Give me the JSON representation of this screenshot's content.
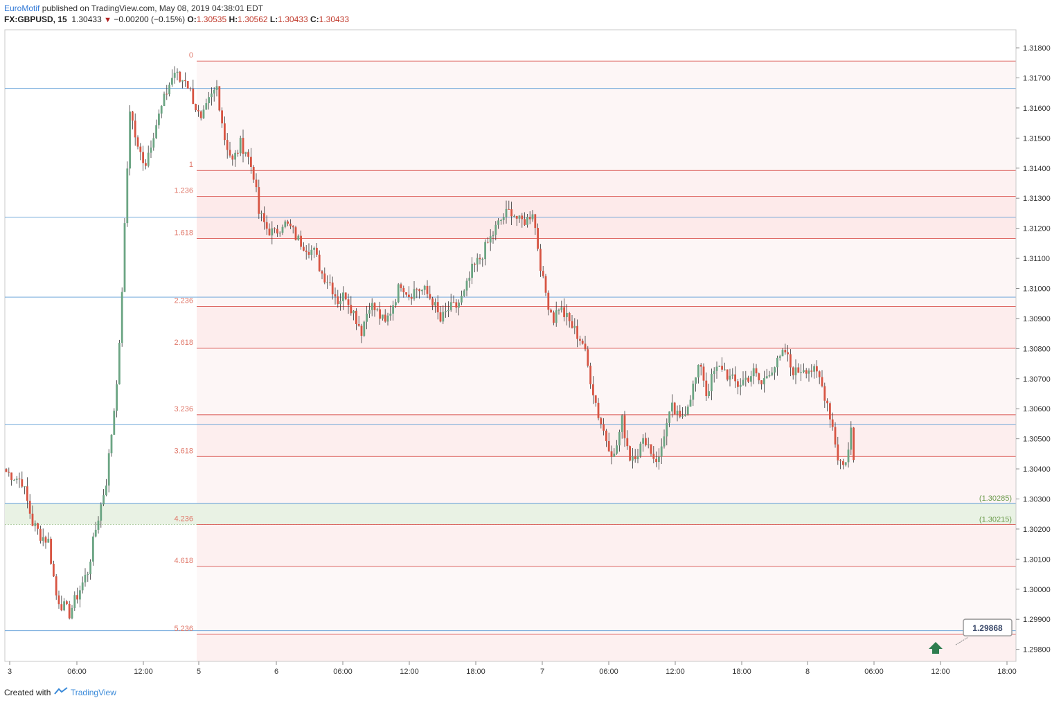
{
  "header": {
    "author": "EuroMotif",
    "published_text": "published on TradingView.com, May 08, 2019 04:38:01 EDT",
    "symbol": "FX:GBPUSD, 15",
    "last": "1.30433",
    "change": "−0.00200 (−0.15%)",
    "o_label": "O:",
    "o_value": "1.30535",
    "h_label": "H:",
    "h_value": "1.30562",
    "l_label": "L:",
    "l_value": "1.30433",
    "c_label": "C:",
    "c_value": "1.30433"
  },
  "footer": {
    "created_with": "Created with",
    "brand": "TradingView"
  },
  "colors": {
    "up": "#6ba583",
    "down": "#d75442",
    "fib_line": "#d9534f",
    "fib_label": "#e0786a",
    "fib_zone": "#fdecec",
    "hline": "#5b9bd5",
    "green_zone": "#e9f2e4",
    "green_text": "#6a9a4a"
  },
  "chart_data": {
    "type": "candlestick",
    "symbol": "GBPUSD",
    "timeframe": "15",
    "ylim": [
      1.2976,
      1.3186
    ],
    "y_ticks": [
      "1.31800",
      "1.31700",
      "1.31600",
      "1.31500",
      "1.31400",
      "1.31300",
      "1.31200",
      "1.31100",
      "1.31000",
      "1.30900",
      "1.30800",
      "1.30700",
      "1.30600",
      "1.30500",
      "1.30400",
      "1.30300",
      "1.30200",
      "1.30100",
      "1.30000",
      "1.29900",
      "1.29800"
    ],
    "x_ticks": [
      "3",
      "06:00",
      "12:00",
      "5",
      "6",
      "06:00",
      "12:00",
      "18:00",
      "7",
      "06:00",
      "12:00",
      "18:00",
      "8",
      "06:00",
      "12:00",
      "18:00"
    ],
    "price_path": [
      [
        0,
        1.3039
      ],
      [
        6,
        1.3036
      ],
      [
        10,
        1.3022
      ],
      [
        13,
        1.3018
      ],
      [
        16,
        1.3016
      ],
      [
        19,
        1.2998
      ],
      [
        21,
        1.2995
      ],
      [
        24,
        1.2992
      ],
      [
        27,
        1.2998
      ],
      [
        31,
        1.3006
      ],
      [
        34,
        1.302
      ],
      [
        38,
        1.3036
      ],
      [
        41,
        1.306
      ],
      [
        43,
        1.308
      ],
      [
        45,
        1.312
      ],
      [
        47,
        1.316
      ],
      [
        50,
        1.3146
      ],
      [
        53,
        1.3142
      ],
      [
        56,
        1.3152
      ],
      [
        59,
        1.316
      ],
      [
        62,
        1.3168
      ],
      [
        64,
        1.3172
      ],
      [
        66,
        1.3169
      ],
      [
        68,
        1.317
      ],
      [
        71,
        1.3163
      ],
      [
        74,
        1.3155
      ],
      [
        77,
        1.3162
      ],
      [
        80,
        1.3167
      ],
      [
        83,
        1.315
      ],
      [
        86,
        1.3142
      ],
      [
        89,
        1.3148
      ],
      [
        91,
        1.3146
      ],
      [
        94,
        1.3138
      ],
      [
        96,
        1.3125
      ],
      [
        99,
        1.312
      ],
      [
        102,
        1.3118
      ],
      [
        105,
        1.3122
      ],
      [
        108,
        1.312
      ],
      [
        111,
        1.3116
      ],
      [
        114,
        1.3114
      ],
      [
        117,
        1.3112
      ],
      [
        120,
        1.3105
      ],
      [
        123,
        1.3102
      ],
      [
        126,
        1.3096
      ],
      [
        129,
        1.3098
      ],
      [
        132,
        1.3092
      ],
      [
        135,
        1.3086
      ],
      [
        138,
        1.3095
      ],
      [
        141,
        1.3092
      ],
      [
        144,
        1.3088
      ],
      [
        147,
        1.3095
      ],
      [
        150,
        1.3102
      ],
      [
        153,
        1.3098
      ],
      [
        156,
        1.31
      ],
      [
        159,
        1.3099
      ],
      [
        162,
        1.3096
      ],
      [
        165,
        1.3089
      ],
      [
        168,
        1.3093
      ],
      [
        171,
        1.3094
      ],
      [
        174,
        1.3098
      ],
      [
        177,
        1.3106
      ],
      [
        180,
        1.311
      ],
      [
        183,
        1.3115
      ],
      [
        186,
        1.312
      ],
      [
        189,
        1.3124
      ],
      [
        192,
        1.3126
      ],
      [
        195,
        1.3122
      ],
      [
        198,
        1.3123
      ],
      [
        200,
        1.3126
      ],
      [
        202,
        1.3114
      ],
      [
        204,
        1.3102
      ],
      [
        206,
        1.3095
      ],
      [
        208,
        1.309
      ],
      [
        210,
        1.3094
      ],
      [
        213,
        1.309
      ],
      [
        216,
        1.3086
      ],
      [
        219,
        1.3082
      ],
      [
        222,
        1.307
      ],
      [
        225,
        1.3058
      ],
      [
        228,
        1.305
      ],
      [
        231,
        1.3044
      ],
      [
        234,
        1.3056
      ],
      [
        237,
        1.3044
      ],
      [
        240,
        1.3046
      ],
      [
        243,
        1.305
      ],
      [
        246,
        1.3044
      ],
      [
        248,
        1.3043
      ],
      [
        250,
        1.3052
      ],
      [
        253,
        1.306
      ],
      [
        256,
        1.3056
      ],
      [
        259,
        1.3062
      ],
      [
        262,
        1.307
      ],
      [
        264,
        1.3075
      ],
      [
        266,
        1.3065
      ],
      [
        269,
        1.3072
      ],
      [
        272,
        1.3074
      ],
      [
        275,
        1.307
      ],
      [
        278,
        1.3068
      ],
      [
        281,
        1.307
      ],
      [
        284,
        1.3072
      ],
      [
        287,
        1.3068
      ],
      [
        290,
        1.3073
      ],
      [
        293,
        1.3075
      ],
      [
        296,
        1.3079
      ],
      [
        298,
        1.3074
      ],
      [
        300,
        1.3072
      ],
      [
        303,
        1.3074
      ],
      [
        306,
        1.3073
      ],
      [
        309,
        1.307
      ],
      [
        312,
        1.3062
      ],
      [
        314,
        1.3054
      ],
      [
        316,
        1.3044
      ],
      [
        318,
        1.3041
      ],
      [
        320,
        1.3046
      ],
      [
        321,
        1.3053
      ],
      [
        322,
        1.3043
      ]
    ],
    "fib_levels": [
      {
        "label": "0",
        "value": 1.31756
      },
      {
        "label": "1",
        "value": 1.31392
      },
      {
        "label": "1.236",
        "value": 1.31306
      },
      {
        "label": "1.618",
        "value": 1.31166
      },
      {
        "label": "2.236",
        "value": 1.3094
      },
      {
        "label": "2.618",
        "value": 1.30801
      },
      {
        "label": "3.236",
        "value": 1.3058
      },
      {
        "label": "3.618",
        "value": 1.30441
      },
      {
        "label": "4.236",
        "value": 1.30215
      },
      {
        "label": "4.618",
        "value": 1.30076
      },
      {
        "label": "5.236",
        "value": 1.2985
      }
    ],
    "horizontal_lines": [
      1.31665,
      1.31237,
      1.30971,
      1.30548,
      1.30285,
      1.29862
    ],
    "green_zone": {
      "top": 1.30285,
      "bottom": 1.30215,
      "top_label": "(1.30285)",
      "bottom_label": "(1.30215)"
    },
    "price_callout": "1.29868",
    "arrow": "up"
  }
}
